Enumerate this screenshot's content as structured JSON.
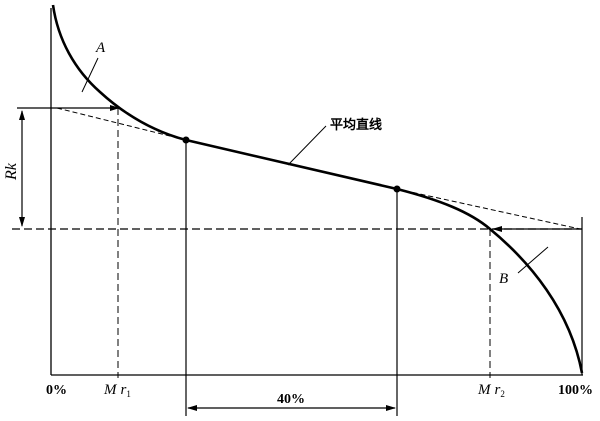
{
  "labels": {
    "curve_a": "A",
    "curve_b": "B",
    "mean_line": "平均直线",
    "rk": "Rk",
    "zero": "0%",
    "mr1_m": "M",
    "mr1_r": "r",
    "mr1_sub": "1",
    "mr2_m": "M",
    "mr2_r": "r",
    "mr2_sub": "2",
    "hundred": "100%",
    "forty": "40%"
  }
}
